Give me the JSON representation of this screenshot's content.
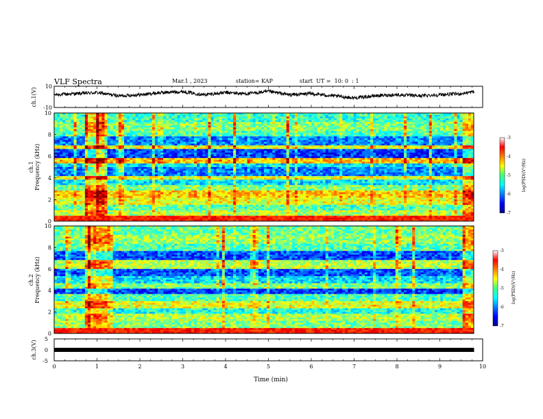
{
  "header": {
    "title": "VLF Spectra",
    "date": "Mar.1 , 2023",
    "station": "station= KAP",
    "start": "start  UT =  10: 0  : 1"
  },
  "chart_data": [
    {
      "type": "line",
      "panel": "ch1-waveform",
      "ylabel": "ch.1(V)",
      "ylim": [
        -10,
        10
      ],
      "yticks": [
        "10",
        "-10"
      ],
      "xlim": [
        0,
        10
      ],
      "x": [
        0,
        0.5,
        1,
        1.5,
        2,
        2.5,
        3,
        3.5,
        4,
        4.5,
        5,
        5.5,
        6,
        6.5,
        7,
        7.5,
        8,
        8.5,
        9,
        9.5,
        9.8
      ],
      "values": [
        2,
        3,
        4,
        1,
        2,
        4,
        5,
        2,
        4,
        3,
        5,
        2,
        3,
        1,
        -1,
        1,
        2,
        1,
        2,
        3,
        5
      ],
      "color": "#000000"
    },
    {
      "type": "heatmap",
      "panel": "ch1-spectrogram",
      "ylabel": "Frequency (kHz)",
      "channel_label": "ch.1",
      "ylim": [
        0,
        10
      ],
      "yticks": [
        "0",
        "2",
        "4",
        "6",
        "8",
        "10"
      ],
      "xlim": [
        0,
        10
      ],
      "colorbar": {
        "label": "log(PSD)(V²/Hz)",
        "range": [
          -7,
          -3
        ],
        "ticks": [
          "-3",
          "-4",
          "-5",
          "-6",
          "-7"
        ],
        "colormap": "jet"
      },
      "bands_khz_level": [
        [
          0,
          0.5,
          -3.4
        ],
        [
          0.5,
          1,
          -4.8
        ],
        [
          1,
          1.5,
          -5.2
        ],
        [
          1.5,
          2.2,
          -4.6
        ],
        [
          2.2,
          2.8,
          -4.3
        ],
        [
          2.8,
          3.4,
          -5.0
        ],
        [
          3.4,
          3.8,
          -5.6
        ],
        [
          3.8,
          4.2,
          -4.6
        ],
        [
          4.2,
          5.0,
          -6.0
        ],
        [
          5.0,
          5.4,
          -5.6
        ],
        [
          5.4,
          5.8,
          -4.3
        ],
        [
          5.8,
          6.6,
          -6.3
        ],
        [
          6.6,
          7.0,
          -4.6
        ],
        [
          7.0,
          7.8,
          -6.0
        ],
        [
          7.8,
          8.4,
          -5.2
        ],
        [
          8.4,
          9.2,
          -5.0
        ],
        [
          9.2,
          10,
          -5.3
        ]
      ],
      "burst_min": [
        [
          0.75,
          1.3
        ],
        [
          9.75,
          10
        ]
      ]
    },
    {
      "type": "heatmap",
      "panel": "ch2-spectrogram",
      "ylabel": "Frequency (kHz)",
      "channel_label": "ch.2",
      "ylim": [
        0,
        10
      ],
      "yticks": [
        "0",
        "2",
        "4",
        "6",
        "8",
        "10"
      ],
      "xlim": [
        0,
        10
      ],
      "colorbar": {
        "label": "log(PSD)(V²/Hz)",
        "range": [
          -7,
          -3
        ],
        "ticks": [
          "-3",
          "-4",
          "-5",
          "-6",
          "-7"
        ],
        "colormap": "jet"
      },
      "bands_khz_level": [
        [
          0,
          0.4,
          -3.4
        ],
        [
          0.4,
          1.2,
          -5.0
        ],
        [
          1.2,
          1.8,
          -4.8
        ],
        [
          1.8,
          2.4,
          -5.4
        ],
        [
          2.4,
          3.0,
          -4.6
        ],
        [
          3.0,
          3.6,
          -5.2
        ],
        [
          3.6,
          4.2,
          -6.3
        ],
        [
          4.2,
          4.6,
          -5.0
        ],
        [
          4.6,
          5.4,
          -5.6
        ],
        [
          5.4,
          6.0,
          -6.2
        ],
        [
          6.0,
          6.8,
          -4.8
        ],
        [
          6.8,
          7.6,
          -6.2
        ],
        [
          7.6,
          8.4,
          -5.2
        ],
        [
          8.4,
          9.2,
          -4.9
        ],
        [
          9.2,
          10,
          -5.1
        ]
      ],
      "burst_min": [
        [
          0.75,
          1.3
        ],
        [
          9.75,
          10
        ]
      ]
    },
    {
      "type": "line",
      "panel": "ch3-waveform",
      "ylabel": "ch.3(V)",
      "ylim": [
        -5,
        5
      ],
      "yticks": [
        "5",
        "0",
        "-5"
      ],
      "xlim": [
        0,
        10
      ],
      "xlabel": "Time (min)",
      "xticks": [
        "0",
        "1",
        "2",
        "3",
        "4",
        "5",
        "6",
        "7",
        "8",
        "9",
        "10"
      ],
      "x": [
        0,
        9.8
      ],
      "values": [
        0,
        0
      ],
      "color": "#000000"
    }
  ]
}
